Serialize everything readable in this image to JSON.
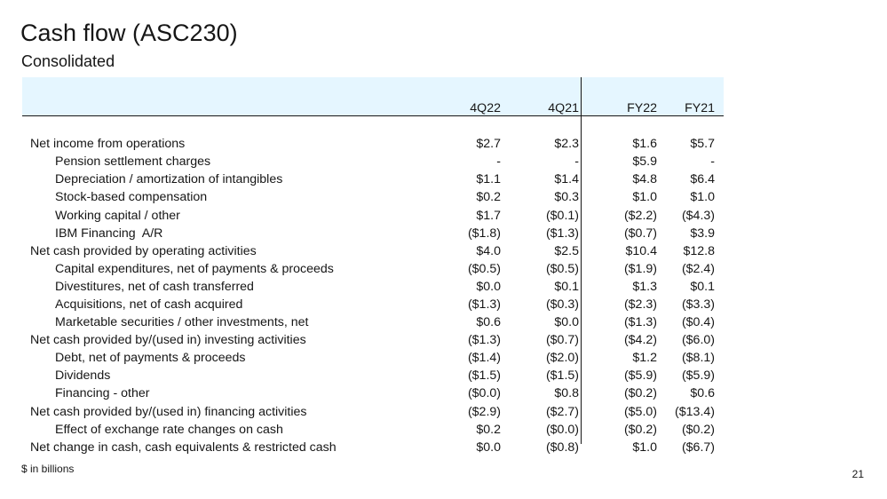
{
  "header": {
    "title": "Cash flow (ASC230)",
    "subtitle": "Consolidated"
  },
  "table": {
    "columns": [
      "4Q22",
      "4Q21",
      "FY22",
      "FY21"
    ],
    "rows": [
      {
        "label": "Net income from operations",
        "values": [
          "$2.7",
          "$2.3",
          "$1.6",
          "$5.7"
        ]
      },
      {
        "label": "Pension settlement charges",
        "values": [
          "-",
          "-",
          "$5.9",
          "-"
        ]
      },
      {
        "label": "Depreciation / amortization of intangibles",
        "values": [
          "$1.1",
          "$1.4",
          "$4.8",
          "$6.4"
        ]
      },
      {
        "label": "Stock-based compensation",
        "values": [
          "$0.2",
          "$0.3",
          "$1.0",
          "$1.0"
        ]
      },
      {
        "label": "Working capital / other",
        "values": [
          "$1.7",
          "($0.1)",
          "($2.2)",
          "($4.3)"
        ]
      },
      {
        "label": "IBM Financing  A/R",
        "values": [
          "($1.8)",
          "($1.3)",
          "($0.7)",
          "$3.9"
        ]
      },
      {
        "label": "Net cash provided by operating activities",
        "values": [
          "$4.0",
          "$2.5",
          "$10.4",
          "$12.8"
        ]
      },
      {
        "label": "Capital expenditures, net of payments & proceeds",
        "values": [
          "($0.5)",
          "($0.5)",
          "($1.9)",
          "($2.4)"
        ]
      },
      {
        "label": "Divestitures, net of cash transferred",
        "values": [
          "$0.0",
          "$0.1",
          "$1.3",
          "$0.1"
        ]
      },
      {
        "label": "Acquisitions, net of cash acquired",
        "values": [
          "($1.3)",
          "($0.3)",
          "($2.3)",
          "($3.3)"
        ]
      },
      {
        "label": "Marketable securities / other investments, net",
        "values": [
          "$0.6",
          "$0.0",
          "($1.3)",
          "($0.4)"
        ]
      },
      {
        "label": "Net cash provided by/(used in) investing activities",
        "values": [
          "($1.3)",
          "($0.7)",
          "($4.2)",
          "($6.0)"
        ]
      },
      {
        "label": "Debt, net of payments & proceeds",
        "values": [
          "($1.4)",
          "($2.0)",
          "$1.2",
          "($8.1)"
        ]
      },
      {
        "label": "Dividends",
        "values": [
          "($1.5)",
          "($1.5)",
          "($5.9)",
          "($5.9)"
        ]
      },
      {
        "label": "Financing - other",
        "values": [
          "($0.0)",
          "$0.8",
          "($0.2)",
          "$0.6"
        ]
      },
      {
        "label": "Net cash provided by/(used in) financing activities",
        "values": [
          "($2.9)",
          "($2.7)",
          "($5.0)",
          "($13.4)"
        ]
      },
      {
        "label": "Effect of exchange rate changes on cash",
        "values": [
          "$0.2",
          "($0.0)",
          "($0.2)",
          "($0.2)"
        ]
      },
      {
        "label": "Net change in cash, cash equivalents & restricted cash",
        "values": [
          "$0.0",
          "($0.8)",
          "$1.0",
          "($6.7)"
        ]
      }
    ]
  },
  "footer": {
    "note": "$ in billions",
    "page_number": "21"
  }
}
